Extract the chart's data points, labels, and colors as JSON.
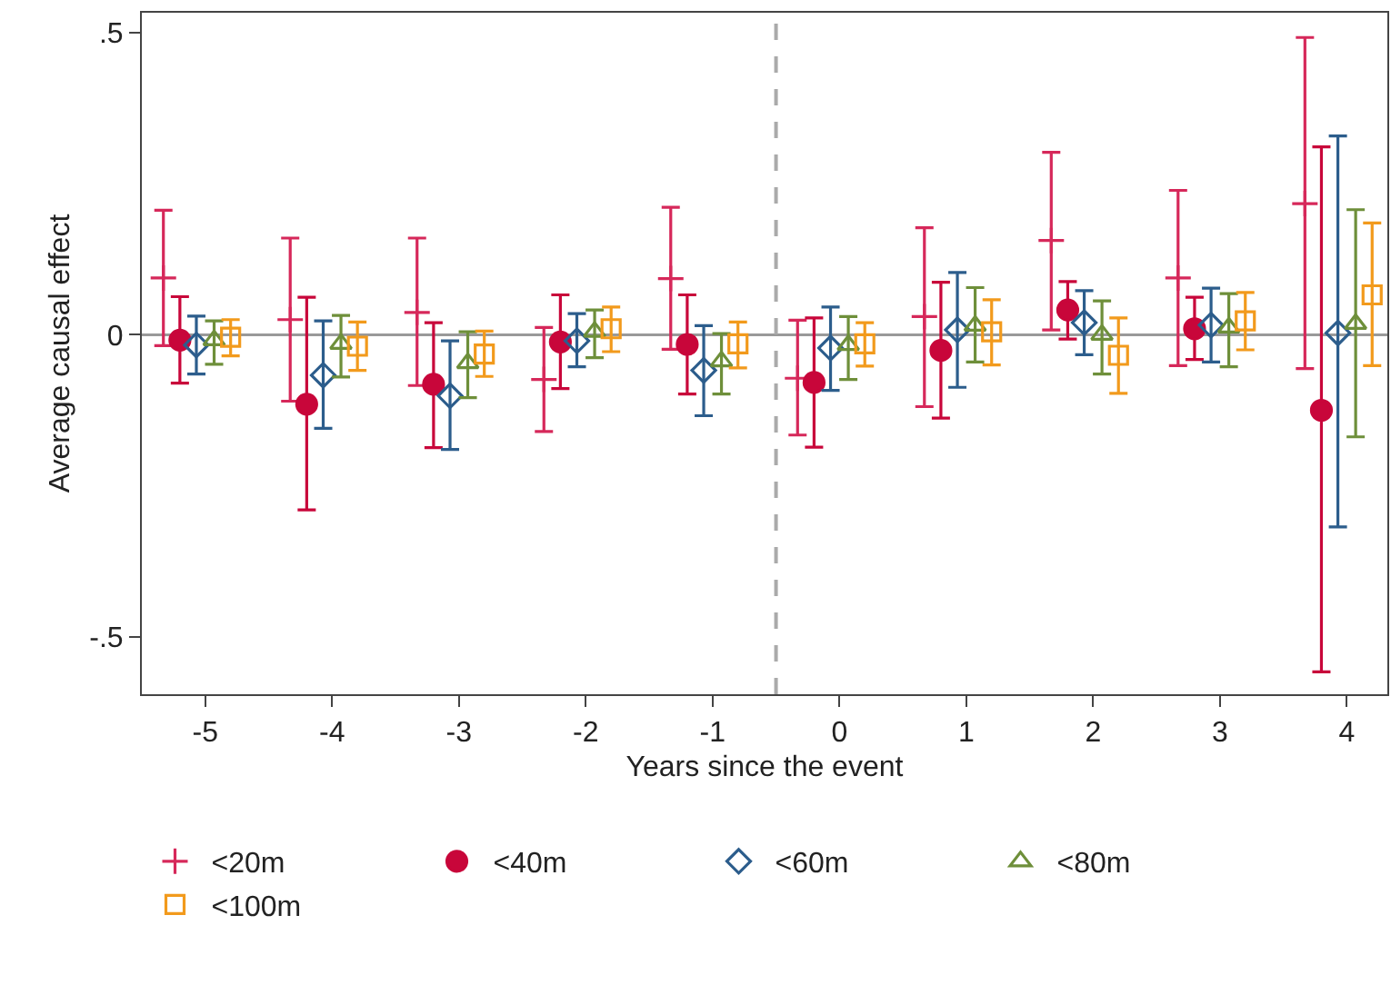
{
  "chart_data": {
    "type": "scatter",
    "xlabel": "Years since the event",
    "ylabel": "Average causal effect",
    "xlim": [
      -5.5,
      4.32
    ],
    "xticks": [
      -5,
      -4,
      -3,
      -2,
      -1,
      0,
      1,
      2,
      3,
      4
    ],
    "ylim": [
      -0.595,
      0.533
    ],
    "yticks": [
      {
        "value": -0.5,
        "label": "-.5"
      },
      0,
      {
        "value": 0.5,
        "label": ".5"
      }
    ],
    "grid": false,
    "legend": "bottom",
    "ref_lines": [
      {
        "axis": "y",
        "value": 0,
        "color": "#999999",
        "line_style": "solid"
      },
      {
        "axis": "x",
        "value": -0.5,
        "color": "#aaaaaa",
        "line_style": "dashed"
      }
    ],
    "series": [
      {
        "name": "<20m",
        "color": "#d6285a",
        "marker": "cross",
        "x": [
          -5.33,
          -4.33,
          -3.33,
          -2.33,
          -1.33,
          -0.33,
          0.67,
          1.67,
          2.67,
          3.67
        ],
        "values": [
          0.094,
          0.025,
          0.037,
          -0.074,
          0.093,
          -0.072,
          0.03,
          0.156,
          0.094,
          0.217
        ],
        "errors": [
          [
            -0.018,
            0.206
          ],
          [
            -0.11,
            0.16
          ],
          [
            -0.084,
            0.16
          ],
          [
            -0.16,
            0.012
          ],
          [
            -0.024,
            0.211
          ],
          [
            -0.166,
            0.024
          ],
          [
            -0.119,
            0.177
          ],
          [
            0.008,
            0.302
          ],
          [
            -0.051,
            0.239
          ],
          [
            -0.056,
            0.492
          ]
        ]
      },
      {
        "name": "<40m",
        "color": "#c8063a",
        "marker": "circle",
        "x": [
          -5.2,
          -4.2,
          -3.2,
          -2.2,
          -1.2,
          -0.2,
          0.8,
          1.8,
          2.8,
          3.8
        ],
        "values": [
          -0.009,
          -0.115,
          -0.082,
          -0.012,
          -0.016,
          -0.079,
          -0.026,
          0.041,
          0.01,
          -0.125
        ],
        "errors": [
          [
            -0.08,
            0.063
          ],
          [
            -0.29,
            0.062
          ],
          [
            -0.187,
            0.02
          ],
          [
            -0.089,
            0.066
          ],
          [
            -0.098,
            0.066
          ],
          [
            -0.186,
            0.028
          ],
          [
            -0.138,
            0.087
          ],
          [
            -0.007,
            0.088
          ],
          [
            -0.041,
            0.062
          ],
          [
            -0.558,
            0.311
          ]
        ]
      },
      {
        "name": "<60m",
        "color": "#2c5d8c",
        "marker": "diamond",
        "x": [
          -5.07,
          -4.07,
          -3.07,
          -2.07,
          -1.07,
          -0.07,
          0.93,
          1.93,
          2.93,
          3.93
        ],
        "values": [
          -0.017,
          -0.067,
          -0.101,
          -0.01,
          -0.059,
          -0.022,
          0.008,
          0.02,
          0.016,
          0.003
        ],
        "errors": [
          [
            -0.065,
            0.031
          ],
          [
            -0.155,
            0.023
          ],
          [
            -0.19,
            -0.01
          ],
          [
            -0.053,
            0.035
          ],
          [
            -0.134,
            0.015
          ],
          [
            -0.092,
            0.046
          ],
          [
            -0.087,
            0.103
          ],
          [
            -0.033,
            0.073
          ],
          [
            -0.045,
            0.077
          ],
          [
            -0.318,
            0.329
          ]
        ]
      },
      {
        "name": "<80m",
        "color": "#6e8f3a",
        "marker": "triangle",
        "x": [
          -4.93,
          -3.93,
          -2.93,
          -1.93,
          -0.93,
          0.07,
          1.07,
          2.07,
          3.07,
          4.07
        ],
        "values": [
          -0.009,
          -0.015,
          -0.047,
          0.005,
          -0.044,
          -0.017,
          0.015,
          0.0,
          0.012,
          0.018
        ],
        "errors": [
          [
            -0.049,
            0.023
          ],
          [
            -0.07,
            0.032
          ],
          [
            -0.104,
            0.005
          ],
          [
            -0.038,
            0.041
          ],
          [
            -0.098,
            0.002
          ],
          [
            -0.074,
            0.03
          ],
          [
            -0.045,
            0.078
          ],
          [
            -0.065,
            0.056
          ],
          [
            -0.053,
            0.068
          ],
          [
            -0.169,
            0.207
          ]
        ]
      },
      {
        "name": "<100m",
        "color": "#f29a1c",
        "marker": "square",
        "x": [
          -4.8,
          -3.8,
          -2.8,
          -1.8,
          -0.8,
          0.2,
          1.2,
          2.2,
          3.2,
          4.2
        ],
        "values": [
          -0.004,
          -0.019,
          -0.032,
          0.01,
          -0.015,
          -0.015,
          0.005,
          -0.034,
          0.023,
          0.066
        ],
        "errors": [
          [
            -0.035,
            0.025
          ],
          [
            -0.059,
            0.021
          ],
          [
            -0.069,
            0.006
          ],
          [
            -0.028,
            0.046
          ],
          [
            -0.055,
            0.021
          ],
          [
            -0.052,
            0.02
          ],
          [
            -0.05,
            0.058
          ],
          [
            -0.097,
            0.028
          ],
          [
            -0.025,
            0.07
          ],
          [
            -0.051,
            0.185
          ]
        ]
      }
    ]
  }
}
